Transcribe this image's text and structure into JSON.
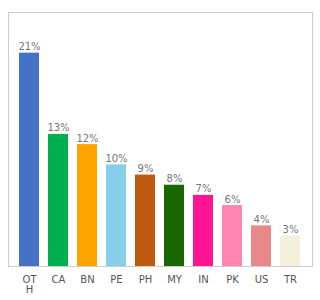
{
  "chart_data": {
    "type": "bar",
    "categories": [
      "OT\nH",
      "CA",
      "BN",
      "PE",
      "PH",
      "MY",
      "IN",
      "PK",
      "US",
      "TR"
    ],
    "values": [
      21,
      13,
      12,
      10,
      9,
      8,
      7,
      6,
      4,
      3
    ],
    "value_labels": [
      "21%",
      "13%",
      "12%",
      "10%",
      "9%",
      "8%",
      "7%",
      "6%",
      "4%",
      "3%"
    ],
    "colors": [
      "#4472C4",
      "#00B050",
      "#FFA500",
      "#87CEEB",
      "#C05A10",
      "#1A6600",
      "#FF1493",
      "#FF85B0",
      "#E88888",
      "#F5F0DC"
    ],
    "ylim": [
      0,
      25
    ],
    "data_labels": true,
    "tick_labels": "x",
    "grid": false
  }
}
